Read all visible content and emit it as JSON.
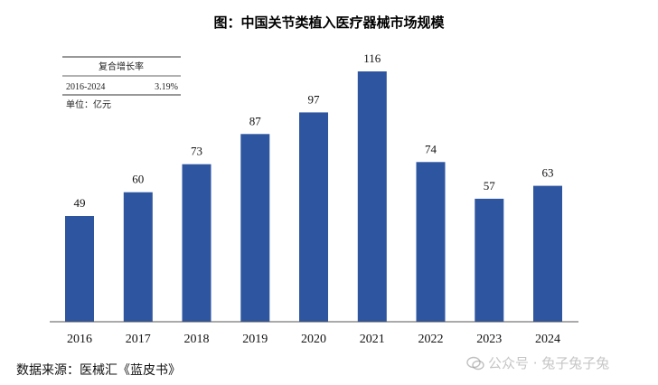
{
  "chart_data": {
    "type": "bar",
    "title": "图：中国关节类植入医疗器械市场规模",
    "categories": [
      "2016",
      "2017",
      "2018",
      "2019",
      "2020",
      "2021",
      "2022",
      "2023",
      "2024"
    ],
    "values": [
      49,
      60,
      73,
      87,
      97,
      116,
      74,
      57,
      63
    ],
    "unit_label": "单位：亿元",
    "ylim": [
      0,
      116
    ],
    "bar_color": "#2e55a0",
    "cagr_table": {
      "header": "复合增长率",
      "period": "2016-2024",
      "rate": "3.19%"
    }
  },
  "footer": {
    "source": "数据来源：医械汇《蓝皮书》",
    "watermark": "公众号 · 兔子兔子兔"
  }
}
